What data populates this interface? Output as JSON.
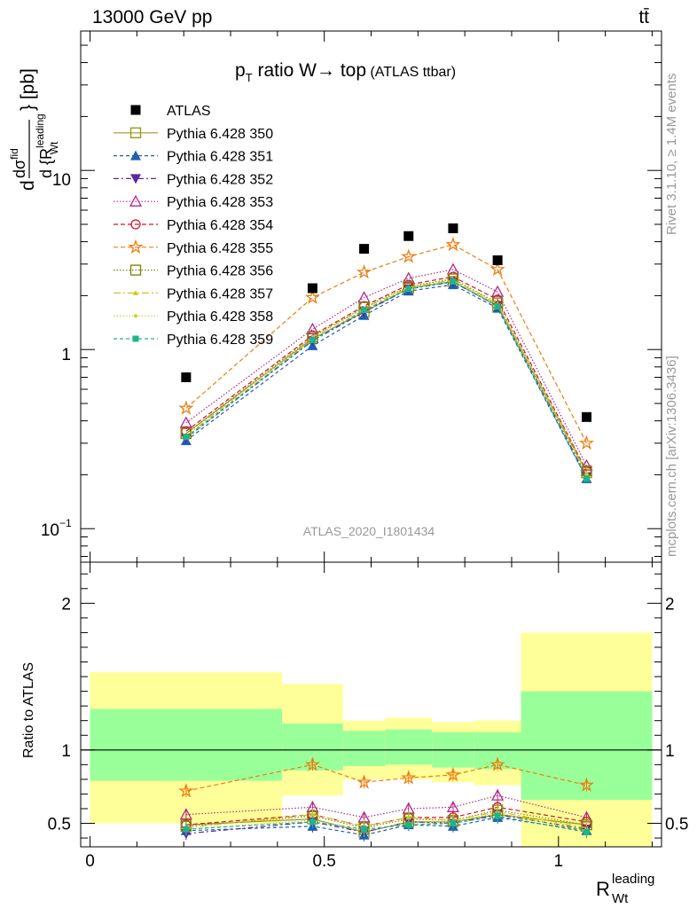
{
  "header": {
    "left": "13000 GeV pp",
    "right": "tt̄"
  },
  "side_text": {
    "rivet": "Rivet 3.1.10, ≥ 1.4M events",
    "mcplots": "mcplots.cern.ch [arXiv:1306.3436]"
  },
  "watermark": "ATLAS_2020_I1801434",
  "colors": {
    "ATLAS": "#000000",
    "Pythia 6.428 350": "#9a9a1f",
    "Pythia 6.428 351": "#1f5fb4",
    "Pythia 6.428 352": "#5a2aa3",
    "Pythia 6.428 353": "#b3288a",
    "Pythia 6.428 354": "#d6152a",
    "Pythia 6.428 355": "#f07d10",
    "Pythia 6.428 356": "#7f8a12",
    "Pythia 6.428 357": "#c8c81e",
    "Pythia 6.428 358": "#c9d12a",
    "Pythia 6.428 359": "#1fb58a",
    "band_inner": "#99ff99",
    "band_outer": "#ffff99"
  },
  "chart_data": {
    "type": "scatter",
    "title": "p_T ratio W → top",
    "title_main": "p",
    "title_sub": "T",
    "title_rest": " ratio W",
    "title_arrow": "→",
    "title_top": " top",
    "title_small": " (ATLAS ttbar)",
    "ylabel_main": "d",
    "ylabel_sigma": "dσ",
    "ylabel_sup": "fid",
    "ylabel_den": "d {R",
    "ylabel_den_sup": "leading",
    "ylabel_den_sub": "Wt",
    "ylabel_units": "} [pb]",
    "xlabel_main": "R",
    "xlabel_sup": "leading",
    "xlabel_sub": "Wt",
    "ratio_ylabel": "Ratio to ATLAS",
    "xlim": [
      -0.02,
      1.22
    ],
    "main_ylim": [
      0.065,
      60
    ],
    "main_yscale": "log",
    "ratio_ylim": [
      0.34,
      2.28
    ],
    "x_tick_labels": [
      "0",
      "0.5",
      "1"
    ],
    "main_y_tick_labels": [
      "10",
      "1",
      "10"
    ],
    "main_y_tick_exponent": "−1",
    "ratio_y_tick_labels": [
      "0.5",
      "1",
      "2"
    ],
    "x_bins": [
      [
        0,
        0.41
      ],
      [
        0.41,
        0.54
      ],
      [
        0.54,
        0.63
      ],
      [
        0.63,
        0.73
      ],
      [
        0.73,
        0.82
      ],
      [
        0.82,
        0.92
      ],
      [
        0.92,
        1.2
      ]
    ],
    "x": [
      0.205,
      0.475,
      0.585,
      0.68,
      0.775,
      0.87,
      1.06
    ],
    "series": [
      {
        "name": "ATLAS",
        "marker": "filled-square",
        "dash": "none",
        "values": [
          0.7,
          2.2,
          3.65,
          4.3,
          4.75,
          3.15,
          0.42
        ]
      },
      {
        "name": "Pythia 6.428 350",
        "marker": "open-square-line",
        "dash": "solid",
        "values": [
          0.34,
          1.15,
          1.62,
          2.2,
          2.4,
          1.75,
          0.205
        ]
      },
      {
        "name": "Pythia 6.428 351",
        "marker": "filled-triangle-up",
        "dash": "4,3",
        "values": [
          0.31,
          1.05,
          1.55,
          2.12,
          2.3,
          1.7,
          0.19
        ]
      },
      {
        "name": "Pythia 6.428 352",
        "marker": "filled-triangle-down",
        "dash": "6,3,2,3",
        "values": [
          0.32,
          1.12,
          1.62,
          2.18,
          2.38,
          1.75,
          0.195
        ]
      },
      {
        "name": "Pythia 6.428 353",
        "marker": "open-triangle-up",
        "dash": "1.5,2",
        "values": [
          0.39,
          1.3,
          1.95,
          2.5,
          2.8,
          2.1,
          0.225
        ]
      },
      {
        "name": "Pythia 6.428 354",
        "marker": "open-circle",
        "dash": "5,3",
        "values": [
          0.35,
          1.2,
          1.75,
          2.3,
          2.55,
          1.9,
          0.21
        ]
      },
      {
        "name": "Pythia 6.428 355",
        "marker": "open-star",
        "dash": "5,3",
        "values": [
          0.47,
          1.95,
          2.7,
          3.3,
          3.85,
          2.8,
          0.3
        ]
      },
      {
        "name": "Pythia 6.428 356",
        "marker": "open-square",
        "dash": "1.5,2",
        "values": [
          0.34,
          1.18,
          1.72,
          2.25,
          2.48,
          1.82,
          0.21
        ]
      },
      {
        "name": "Pythia 6.428 357",
        "marker": "small-triangle",
        "dash": "8,3,2,3",
        "values": [
          0.33,
          1.17,
          1.7,
          2.22,
          2.45,
          1.8,
          0.205
        ]
      },
      {
        "name": "Pythia 6.428 358",
        "marker": "small-dot",
        "dash": "1.5,2",
        "values": [
          0.32,
          1.14,
          1.66,
          2.2,
          2.42,
          1.78,
          0.2
        ]
      },
      {
        "name": "Pythia 6.428 359",
        "marker": "filled-square-small",
        "dash": "4,3",
        "values": [
          0.325,
          1.13,
          1.66,
          2.18,
          2.4,
          1.74,
          0.19
        ]
      }
    ],
    "ratio_band_inner": [
      [
        0.79,
        1.28
      ],
      [
        0.86,
        1.18
      ],
      [
        0.89,
        1.13
      ],
      [
        0.9,
        1.14
      ],
      [
        0.88,
        1.12
      ],
      [
        0.87,
        1.12
      ],
      [
        0.66,
        1.4
      ]
    ],
    "ratio_band_outer": [
      [
        0.5,
        1.53
      ],
      [
        0.69,
        1.45
      ],
      [
        0.8,
        1.2
      ],
      [
        0.8,
        1.22
      ],
      [
        0.78,
        1.19
      ],
      [
        0.76,
        1.2
      ],
      [
        0.34,
        1.8
      ]
    ],
    "ratio_series": [
      {
        "name": "Pythia 6.428 350",
        "values": [
          0.49,
          0.53,
          0.44,
          0.51,
          0.51,
          0.56,
          0.49
        ]
      },
      {
        "name": "Pythia 6.428 351",
        "values": [
          0.45,
          0.48,
          0.42,
          0.49,
          0.48,
          0.54,
          0.45
        ]
      },
      {
        "name": "Pythia 6.428 352",
        "values": [
          0.43,
          0.51,
          0.44,
          0.51,
          0.5,
          0.56,
          0.46
        ]
      },
      {
        "name": "Pythia 6.428 353",
        "values": [
          0.56,
          0.61,
          0.54,
          0.6,
          0.61,
          0.69,
          0.54
        ]
      },
      {
        "name": "Pythia 6.428 354",
        "values": [
          0.49,
          0.56,
          0.48,
          0.54,
          0.54,
          0.61,
          0.51
        ]
      },
      {
        "name": "Pythia 6.428 355",
        "values": [
          0.72,
          0.9,
          0.78,
          0.81,
          0.83,
          0.9,
          0.76
        ]
      },
      {
        "name": "Pythia 6.428 356",
        "values": [
          0.48,
          0.55,
          0.47,
          0.53,
          0.52,
          0.59,
          0.49
        ]
      },
      {
        "name": "Pythia 6.428 357",
        "values": [
          0.47,
          0.56,
          0.48,
          0.54,
          0.52,
          0.58,
          0.47
        ]
      },
      {
        "name": "Pythia 6.428 358",
        "values": [
          0.46,
          0.52,
          0.45,
          0.5,
          0.51,
          0.57,
          0.45
        ]
      },
      {
        "name": "Pythia 6.428 359",
        "values": [
          0.46,
          0.51,
          0.46,
          0.49,
          0.5,
          0.55,
          0.44
        ]
      }
    ]
  }
}
